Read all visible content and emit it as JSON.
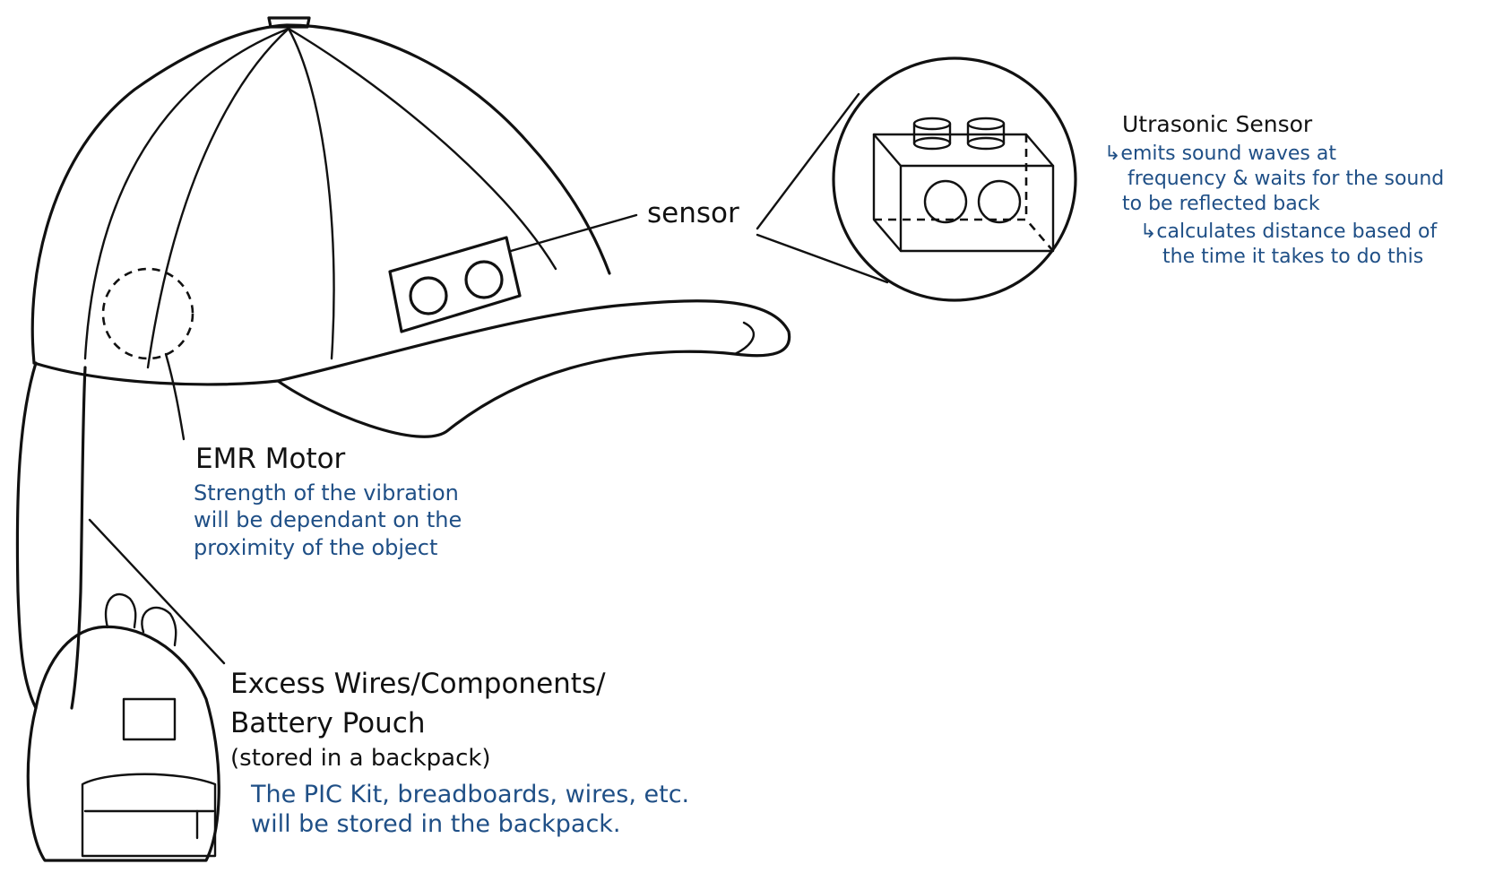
{
  "labels": {
    "sensor": "sensor",
    "ultrasonic_title": "Utrasonic Sensor",
    "ultrasonic_line1": "↳emits sound waves at",
    "ultrasonic_line2": "frequency & waits for the sound",
    "ultrasonic_line3": "to be reflected back",
    "ultrasonic_line4": "↳calculates distance based of",
    "ultrasonic_line5": "the time it takes to do this",
    "motor_title": "EMR Motor",
    "motor_line1": "Strength of the vibration",
    "motor_line2": "will be dependant on the",
    "motor_line3": "proximity of the object",
    "pouch_line1": "Excess Wires/Components/",
    "pouch_line2": "Battery Pouch",
    "pouch_line3": "(stored in a backpack)",
    "pouch_note1": "The PIC Kit, breadboards, wires, etc.",
    "pouch_note2": "will be stored in the backpack."
  },
  "colors": {
    "ink": "#111111",
    "annotation_blue": "#1f4f86",
    "background": "#ffffff"
  }
}
